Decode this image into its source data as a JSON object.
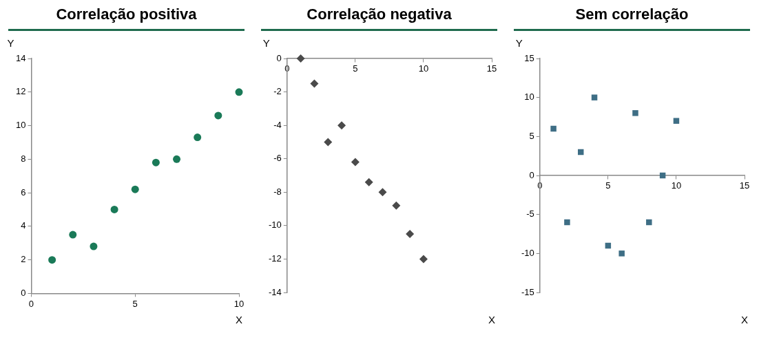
{
  "chart_data": [
    {
      "type": "scatter",
      "title": "Correlação positiva",
      "xlabel": "X",
      "ylabel": "Y",
      "marker": "circle",
      "xlim": [
        0,
        10
      ],
      "xticks": [
        0,
        5,
        10
      ],
      "ylim": [
        0,
        14
      ],
      "yticks": [
        0,
        2,
        4,
        6,
        8,
        10,
        12,
        14
      ],
      "x": [
        1,
        2,
        3,
        4,
        5,
        6,
        7,
        8,
        9,
        10
      ],
      "series": [
        {
          "color": "#1a7a58",
          "values": [
            2,
            3.5,
            2.8,
            5,
            6.2,
            7.8,
            8,
            9.3,
            10.6,
            12
          ]
        }
      ]
    },
    {
      "type": "scatter",
      "title": "Correlação negativa",
      "xlabel": "X",
      "ylabel": "Y",
      "marker": "diamond",
      "xlim": [
        0,
        15
      ],
      "xticks": [
        0,
        5,
        10,
        15
      ],
      "ylim": [
        -14,
        0
      ],
      "yticks": [
        -14,
        -12,
        -10,
        -8,
        -6,
        -4,
        -2,
        0
      ],
      "x": [
        1,
        2,
        3,
        4,
        5,
        6,
        7,
        8,
        9,
        10
      ],
      "series": [
        {
          "color": "#4a4a4a",
          "values": [
            0,
            -1.5,
            -5,
            -4,
            -6.2,
            -7.4,
            -8,
            -8.8,
            -10.5,
            -12
          ]
        }
      ]
    },
    {
      "type": "scatter",
      "title": "Sem correlação",
      "xlabel": "X",
      "ylabel": "Y",
      "marker": "square",
      "xlim": [
        0,
        15
      ],
      "xticks": [
        0,
        5,
        10,
        15
      ],
      "ylim": [
        -15,
        15
      ],
      "yticks": [
        -15,
        -10,
        -5,
        0,
        5,
        10,
        15
      ],
      "x": [
        1,
        2,
        3,
        4,
        5,
        6,
        7,
        8,
        9,
        10
      ],
      "series": [
        {
          "color": "#3e6e85",
          "values": [
            6,
            -6,
            3,
            10,
            -9,
            -10,
            8,
            -6,
            0,
            7
          ]
        }
      ]
    }
  ]
}
